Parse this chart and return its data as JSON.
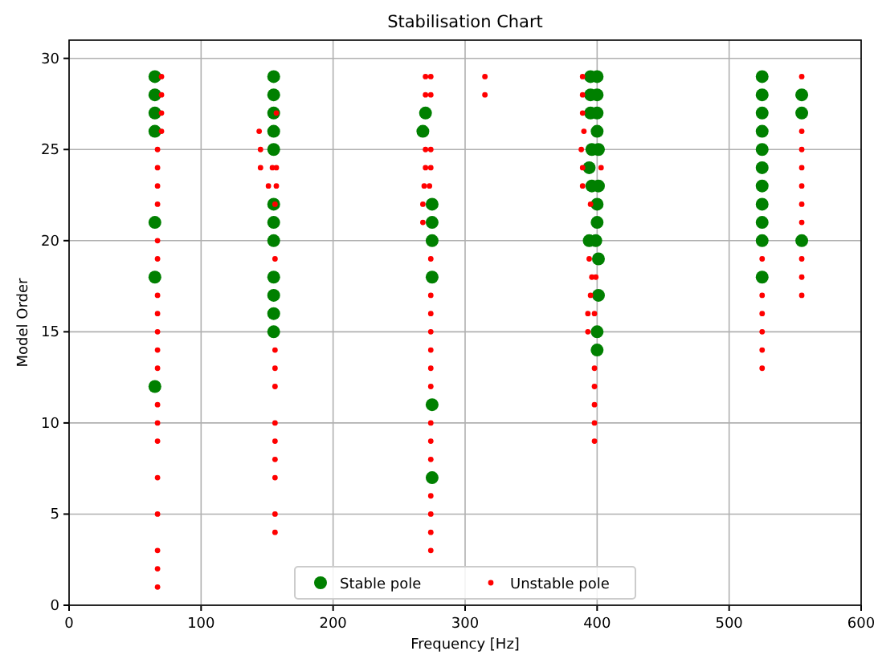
{
  "chart_data": {
    "type": "scatter",
    "title": "Stabilisation Chart",
    "xlabel": "Frequency [Hz]",
    "ylabel": "Model Order",
    "xlim": [
      0,
      600
    ],
    "ylim": [
      0,
      31
    ],
    "xticks": [
      0,
      100,
      200,
      300,
      400,
      500,
      600
    ],
    "yticks": [
      0,
      5,
      10,
      15,
      20,
      25,
      30
    ],
    "grid": true,
    "legend": "bottom",
    "marker": "circle",
    "series": [
      {
        "name": "Stable pole",
        "color": "#008000",
        "x": [
          65,
          65,
          65,
          65,
          65,
          65,
          65,
          155,
          155,
          155,
          155,
          155,
          155,
          155,
          155,
          155,
          155,
          155,
          155,
          270,
          268,
          275,
          275,
          275,
          275,
          275,
          275,
          395,
          400,
          395,
          400,
          395,
          400,
          400,
          396,
          401,
          394,
          396,
          401,
          400,
          400,
          394,
          399,
          401,
          401,
          400,
          400,
          525,
          525,
          525,
          525,
          525,
          525,
          525,
          525,
          525,
          525,
          525,
          555,
          555,
          555
        ],
        "values": [
          29,
          28,
          27,
          26,
          21,
          18,
          12,
          29,
          28,
          27,
          26,
          25,
          22,
          21,
          20,
          18,
          17,
          16,
          15,
          27,
          26,
          22,
          21,
          20,
          18,
          11,
          7,
          29,
          29,
          28,
          28,
          27,
          27,
          26,
          25,
          25,
          24,
          23,
          23,
          22,
          21,
          20,
          20,
          19,
          17,
          15,
          14,
          29,
          28,
          27,
          26,
          25,
          24,
          23,
          22,
          21,
          20,
          18,
          28,
          27,
          20
        ]
      },
      {
        "name": "Unstable pole",
        "color": "#ff0000",
        "x": [
          70,
          70,
          70,
          70,
          67,
          67,
          67,
          67,
          67,
          67,
          67,
          67,
          67,
          67,
          67,
          67,
          67,
          67,
          67,
          67,
          67,
          67,
          67,
          157,
          144,
          145,
          145,
          154,
          157,
          151,
          157,
          156,
          156,
          156,
          156,
          156,
          156,
          156,
          156,
          156,
          156,
          156,
          270,
          274,
          270,
          274,
          270,
          274,
          270,
          274,
          269,
          273,
          268,
          268,
          274,
          274,
          274,
          274,
          274,
          274,
          274,
          274,
          274,
          274,
          274,
          274,
          274,
          274,
          315,
          315,
          389,
          389,
          389,
          389,
          389,
          390,
          388,
          403,
          395,
          394,
          396,
          399,
          395,
          393,
          398,
          393,
          398,
          398,
          398,
          398,
          398,
          525,
          525,
          525,
          525,
          525,
          525,
          555,
          555,
          555,
          555,
          555,
          555,
          555,
          555,
          555,
          555
        ],
        "values": [
          29,
          28,
          27,
          26,
          25,
          24,
          23,
          22,
          20,
          19,
          17,
          16,
          15,
          14,
          13,
          11,
          10,
          9,
          7,
          5,
          3,
          2,
          1,
          27,
          26,
          25,
          24,
          24,
          24,
          23,
          23,
          22,
          19,
          14,
          13,
          12,
          10,
          9,
          8,
          7,
          5,
          4,
          29,
          29,
          28,
          28,
          25,
          25,
          24,
          24,
          23,
          23,
          22,
          21,
          19,
          17,
          16,
          15,
          14,
          13,
          12,
          10,
          9,
          8,
          6,
          5,
          4,
          3,
          29,
          28,
          29,
          28,
          27,
          24,
          23,
          26,
          25,
          24,
          22,
          19,
          18,
          18,
          17,
          16,
          16,
          15,
          13,
          12,
          11,
          10,
          9,
          19,
          17,
          16,
          15,
          14,
          13,
          29,
          26,
          25,
          24,
          23,
          22,
          21,
          19,
          18,
          17
        ]
      }
    ]
  }
}
